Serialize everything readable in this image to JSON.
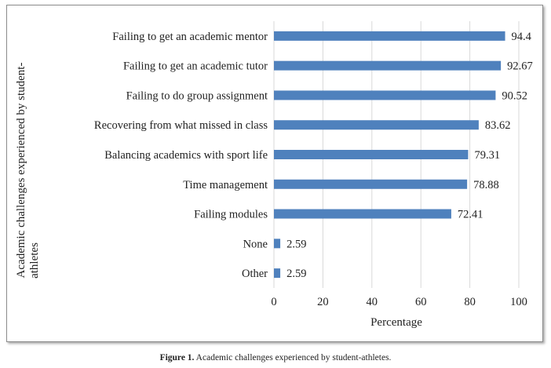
{
  "chart_data": {
    "type": "bar",
    "orientation": "horizontal",
    "categories": [
      "Failing to get an academic mentor",
      "Failing to get an academic tutor",
      "Failing to do group assignment",
      "Recovering from what missed in class",
      "Balancing academics with sport life",
      "Time management",
      "Failing modules",
      "None",
      "Other"
    ],
    "values": [
      94.4,
      92.67,
      90.52,
      83.62,
      79.31,
      78.88,
      72.41,
      2.59,
      2.59
    ],
    "value_labels": [
      "94.4",
      "92.67",
      "90.52",
      "83.62",
      "79.31",
      "78.88",
      "72.41",
      "2.59",
      "2.59"
    ],
    "xlabel": "Percentage",
    "ylabel": "Academic challenges experienced by student-athletes",
    "ylabel_lines": [
      "Academic challenges experienced by student-",
      "athletes"
    ],
    "xlim": [
      0,
      100
    ],
    "xticks": [
      0,
      20,
      40,
      60,
      80,
      100
    ],
    "grid": "vertical",
    "bar_color": "#4f81bd"
  },
  "caption": {
    "label": "Figure 1.",
    "text": " Academic challenges experienced by student-athletes."
  }
}
